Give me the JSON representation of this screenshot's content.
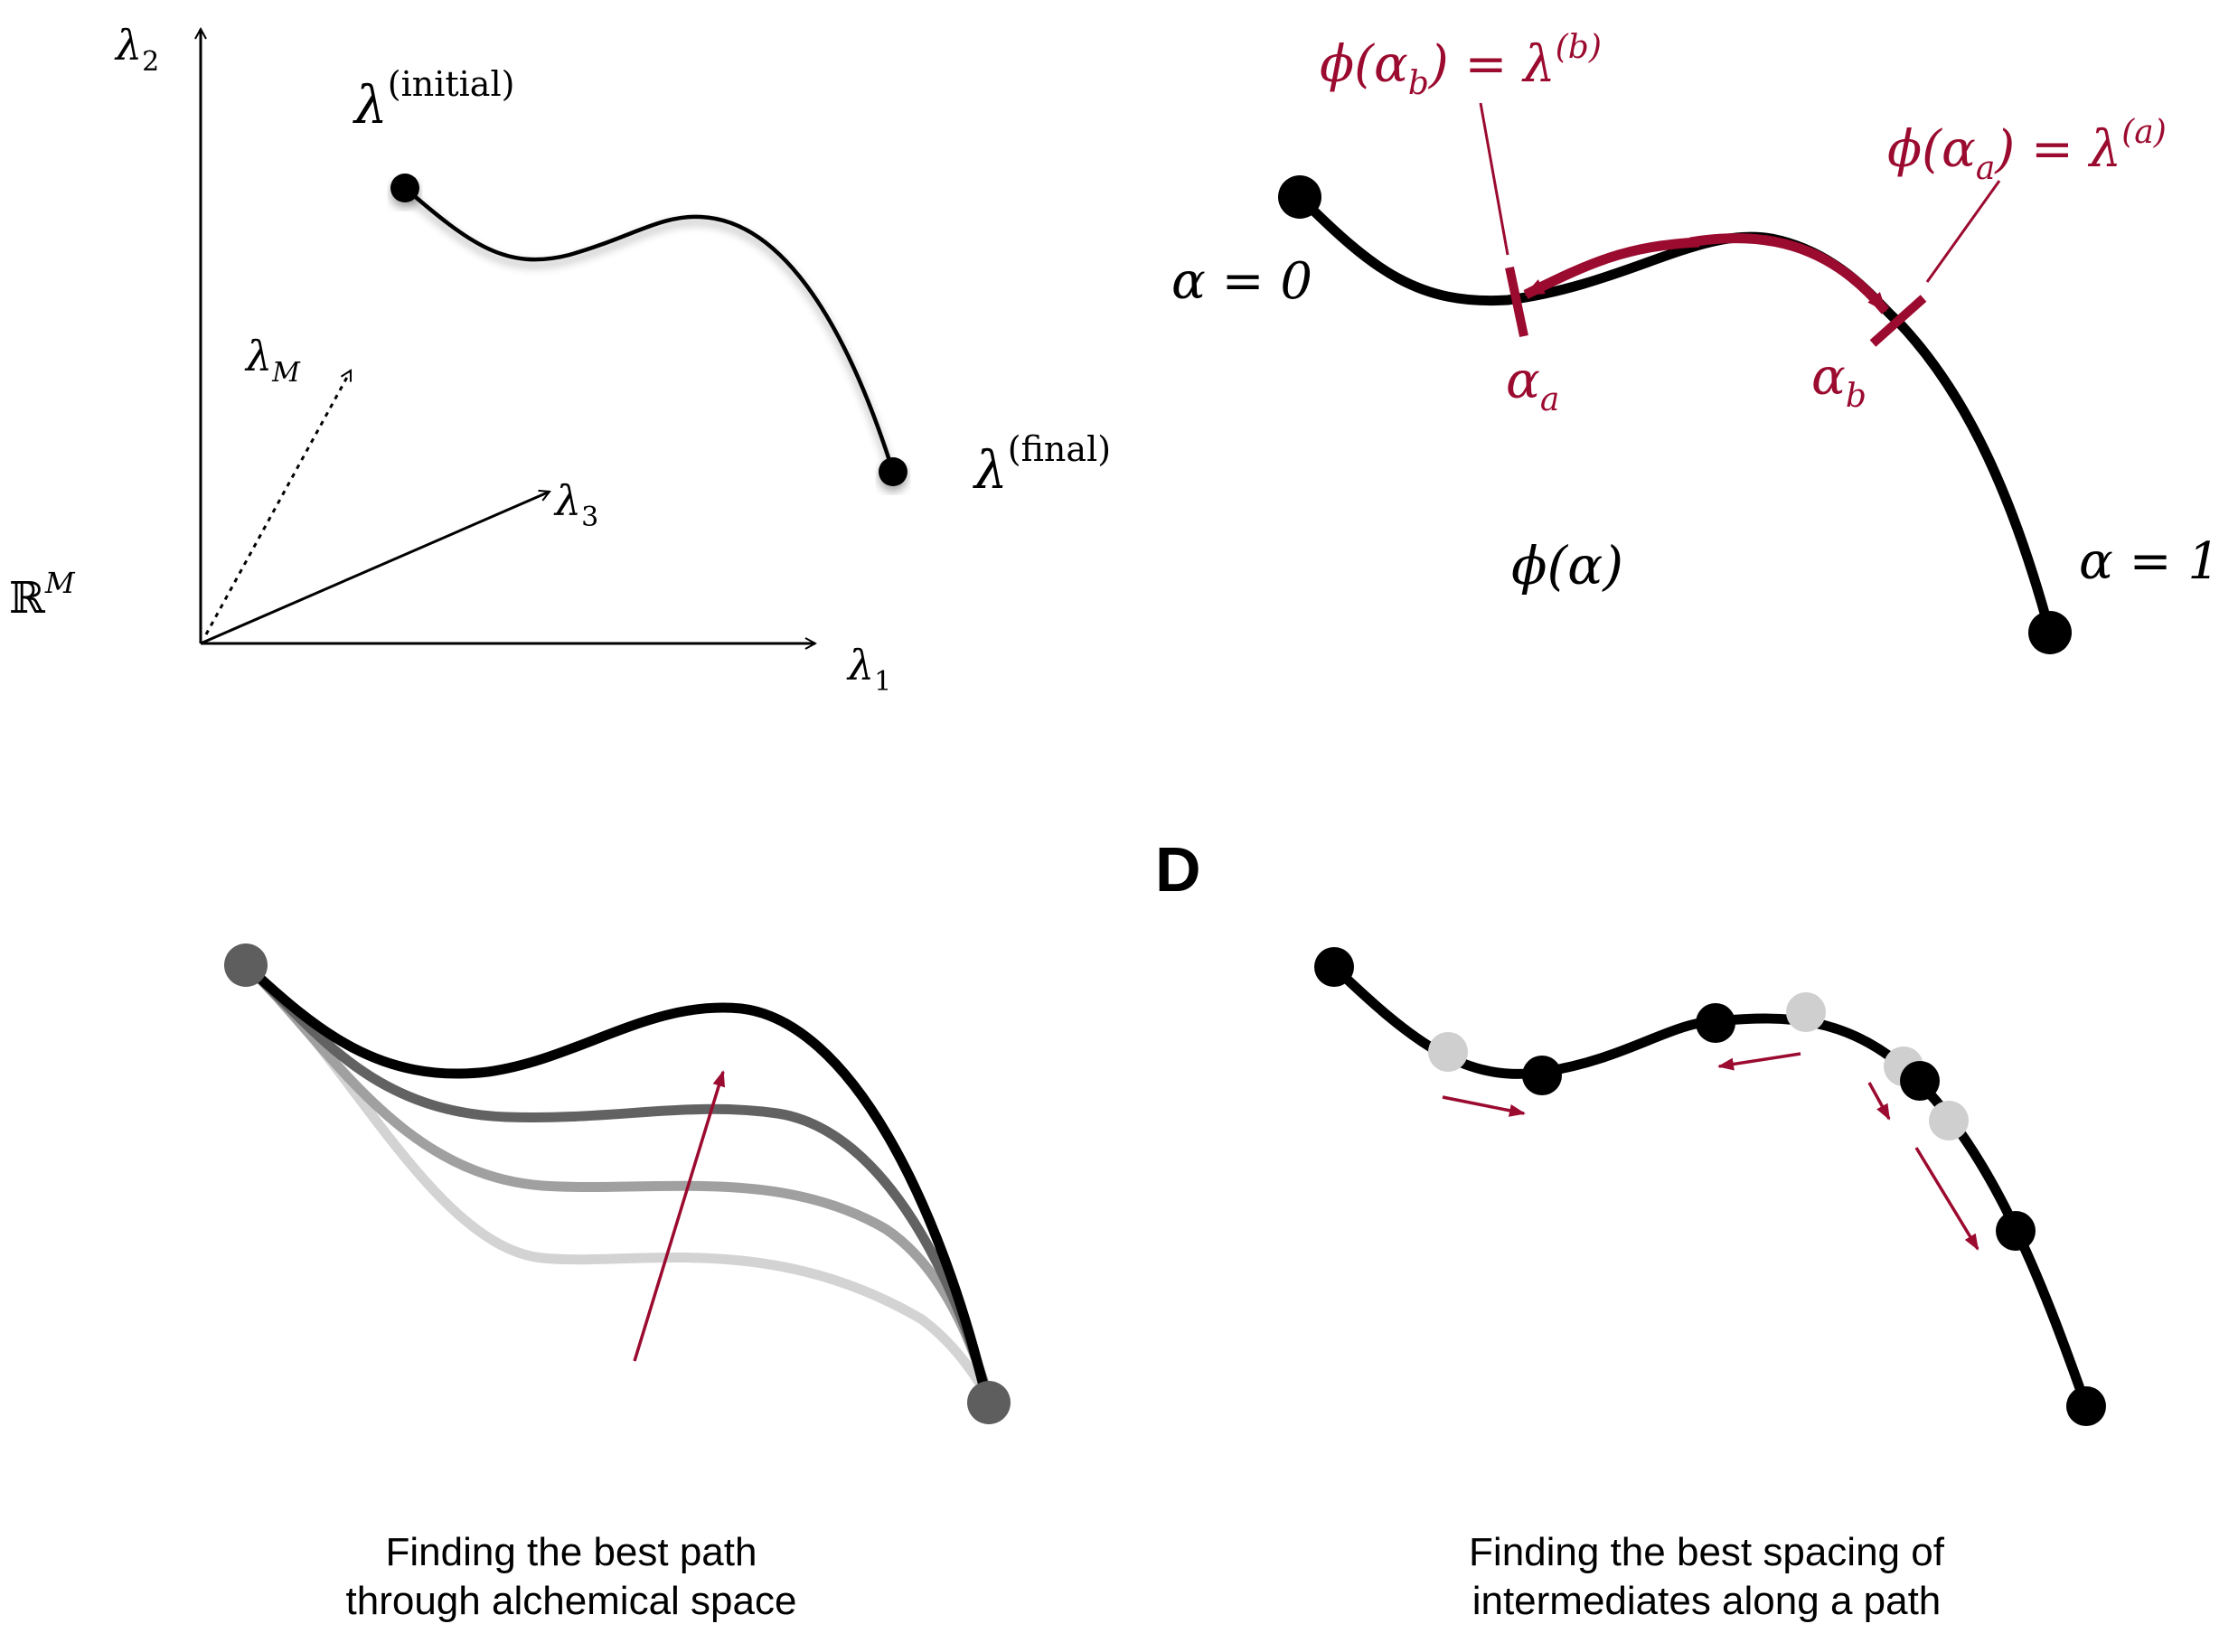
{
  "colors": {
    "ink": "#000000",
    "accent_red": "#9b0a2f",
    "dark_gray": "#5f5f5f",
    "mid_gray": "#8c8c8c",
    "light_gray": "#c8c8c8",
    "node_light": "#cfcfcf"
  },
  "panel_a": {
    "axis_lambda2": "λ",
    "axis_lambda2_sub": "2",
    "axis_lambda1": "λ",
    "axis_lambda1_sub": "1",
    "axis_lambda3": "λ",
    "axis_lambda3_sub": "3",
    "axis_lambdaM": "λ",
    "axis_lambdaM_sub": "M",
    "space_symbol": "ℝ",
    "space_sup": "M",
    "initial_label": "λ",
    "initial_sup": "(initial)",
    "final_label": "λ",
    "final_sup": "(final)"
  },
  "panel_b": {
    "phi_b_lhs": "ϕ(α",
    "phi_b_sub": "b",
    "phi_b_rhs": ") = λ",
    "phi_b_sup": "(b)",
    "phi_a_lhs": "ϕ(α",
    "phi_a_sub": "a",
    "phi_a_rhs": ") = λ",
    "phi_a_sup": "(a)",
    "alpha0": "α = 0",
    "alpha1": "α = 1",
    "alpha_a": "α",
    "alpha_a_sub": "a",
    "alpha_b": "α",
    "alpha_b_sub": "b",
    "phi_alpha": "ϕ(α)"
  },
  "panel_c": {
    "caption_line1": "Finding the best path",
    "caption_line2": "through alchemical space"
  },
  "panel_d": {
    "letter": "D",
    "caption_line1": "Finding the best spacing of",
    "caption_line2": "intermediates along a path"
  }
}
